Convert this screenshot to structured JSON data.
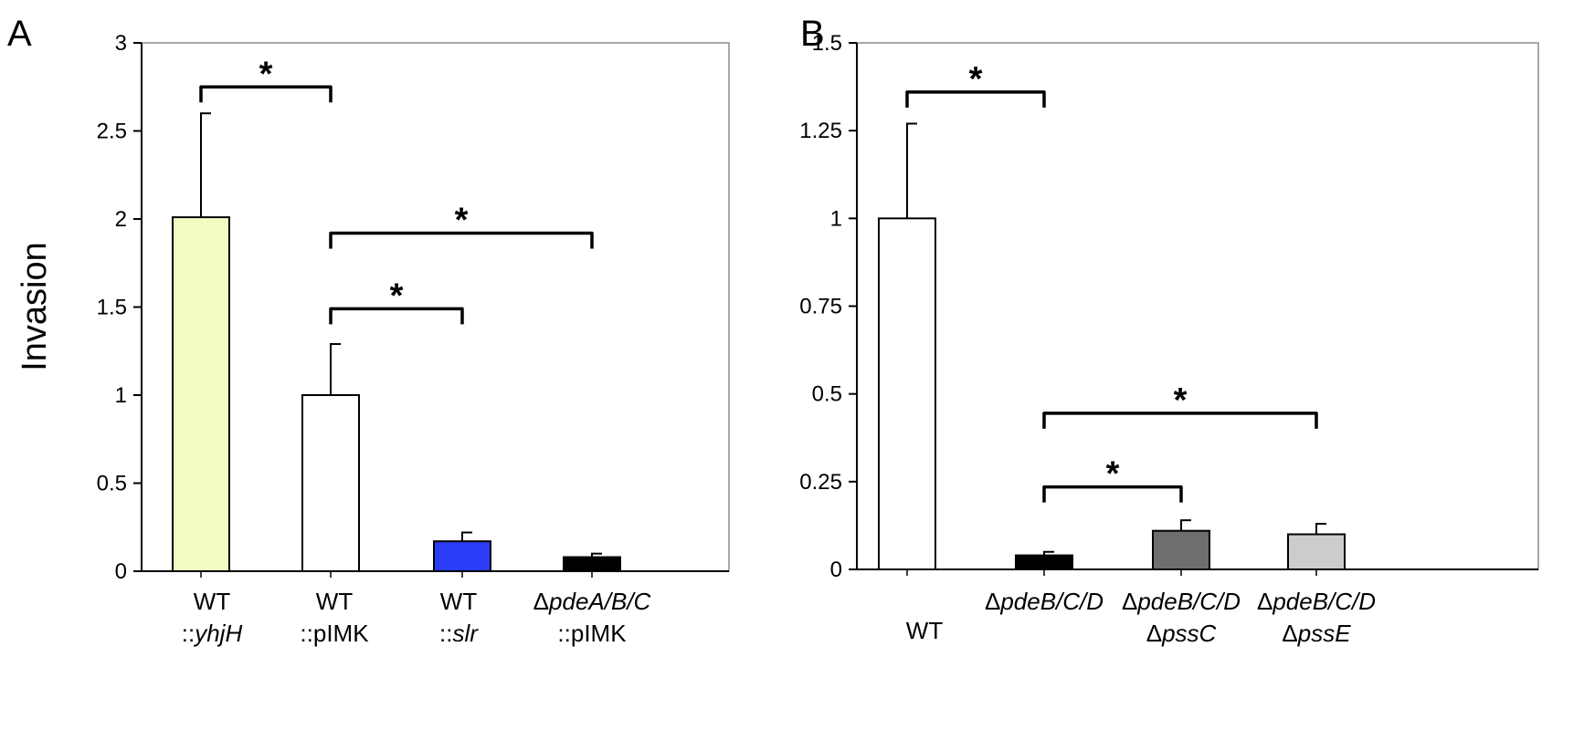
{
  "chart_data": [
    {
      "type": "bar",
      "panel_label": "A",
      "ylabel": "Invasion",
      "ylim": [
        0,
        3
      ],
      "yticks": [
        "0",
        "0.5",
        "1",
        "1.5",
        "2",
        "2.5",
        "3"
      ],
      "ytick_values": [
        0,
        0.5,
        1,
        1.5,
        2,
        2.5,
        3
      ],
      "grid": false,
      "categories": [
        {
          "lines": [
            [
              {
                "text": "WT",
                "italic": false
              }
            ],
            [
              {
                "text": "::",
                "italic": false
              },
              {
                "text": "yhjH",
                "italic": true
              }
            ]
          ]
        },
        {
          "lines": [
            [
              {
                "text": "WT",
                "italic": false
              }
            ],
            [
              {
                "text": "::pIMK",
                "italic": false
              }
            ]
          ]
        },
        {
          "lines": [
            [
              {
                "text": "WT",
                "italic": false
              }
            ],
            [
              {
                "text": "::",
                "italic": false
              },
              {
                "text": "slr",
                "italic": true
              }
            ]
          ]
        },
        {
          "lines": [
            [
              {
                "text": "Δ",
                "italic": false
              },
              {
                "text": "pdeA/B/C",
                "italic": true
              }
            ],
            [
              {
                "text": "::pIMK",
                "italic": false
              }
            ]
          ]
        }
      ],
      "values": [
        2.01,
        1.0,
        0.17,
        0.08
      ],
      "errors": [
        0.59,
        0.29,
        0.05,
        0.02
      ],
      "colors": [
        "#f2fbc4",
        "#ffffff",
        "#2a3cf5",
        "#000000"
      ],
      "significance": [
        {
          "from": 0,
          "to": 1,
          "level": 2.75,
          "label": "*"
        },
        {
          "from": 1,
          "to": 3,
          "level": 1.92,
          "label": "*"
        },
        {
          "from": 1,
          "to": 2,
          "level": 1.49,
          "label": "*"
        }
      ]
    },
    {
      "type": "bar",
      "panel_label": "B",
      "ylabel": "",
      "ylim": [
        0,
        1.5
      ],
      "yticks": [
        "0",
        "0.25",
        "0.5",
        "0.75",
        "1",
        "1.25",
        "1.5"
      ],
      "ytick_values": [
        0,
        0.25,
        0.5,
        0.75,
        1,
        1.25,
        1.5
      ],
      "grid": false,
      "categories": [
        {
          "lines": [
            [
              {
                "text": "WT",
                "italic": false
              }
            ]
          ]
        },
        {
          "lines": [
            [
              {
                "text": "Δ",
                "italic": false
              },
              {
                "text": "pdeB/C/D",
                "italic": true
              }
            ]
          ]
        },
        {
          "lines": [
            [
              {
                "text": "Δ",
                "italic": false
              },
              {
                "text": "pdeB/C/D",
                "italic": true
              }
            ],
            [
              {
                "text": "Δ",
                "italic": false
              },
              {
                "text": "pssC",
                "italic": true
              }
            ]
          ]
        },
        {
          "lines": [
            [
              {
                "text": "Δ",
                "italic": false
              },
              {
                "text": "pdeB/C/D",
                "italic": true
              }
            ],
            [
              {
                "text": "Δ",
                "italic": false
              },
              {
                "text": "pssE",
                "italic": true
              }
            ]
          ]
        }
      ],
      "values": [
        1.0,
        0.04,
        0.11,
        0.1
      ],
      "errors": [
        0.27,
        0.01,
        0.03,
        0.03
      ],
      "colors": [
        "#ffffff",
        "#000000",
        "#6e6e6e",
        "#cccccc"
      ],
      "significance": [
        {
          "from": 0,
          "to": 1,
          "level": 1.36,
          "label": "*"
        },
        {
          "from": 1,
          "to": 3,
          "level": 0.445,
          "label": "*"
        },
        {
          "from": 1,
          "to": 2,
          "level": 0.235,
          "label": "*"
        }
      ]
    }
  ]
}
